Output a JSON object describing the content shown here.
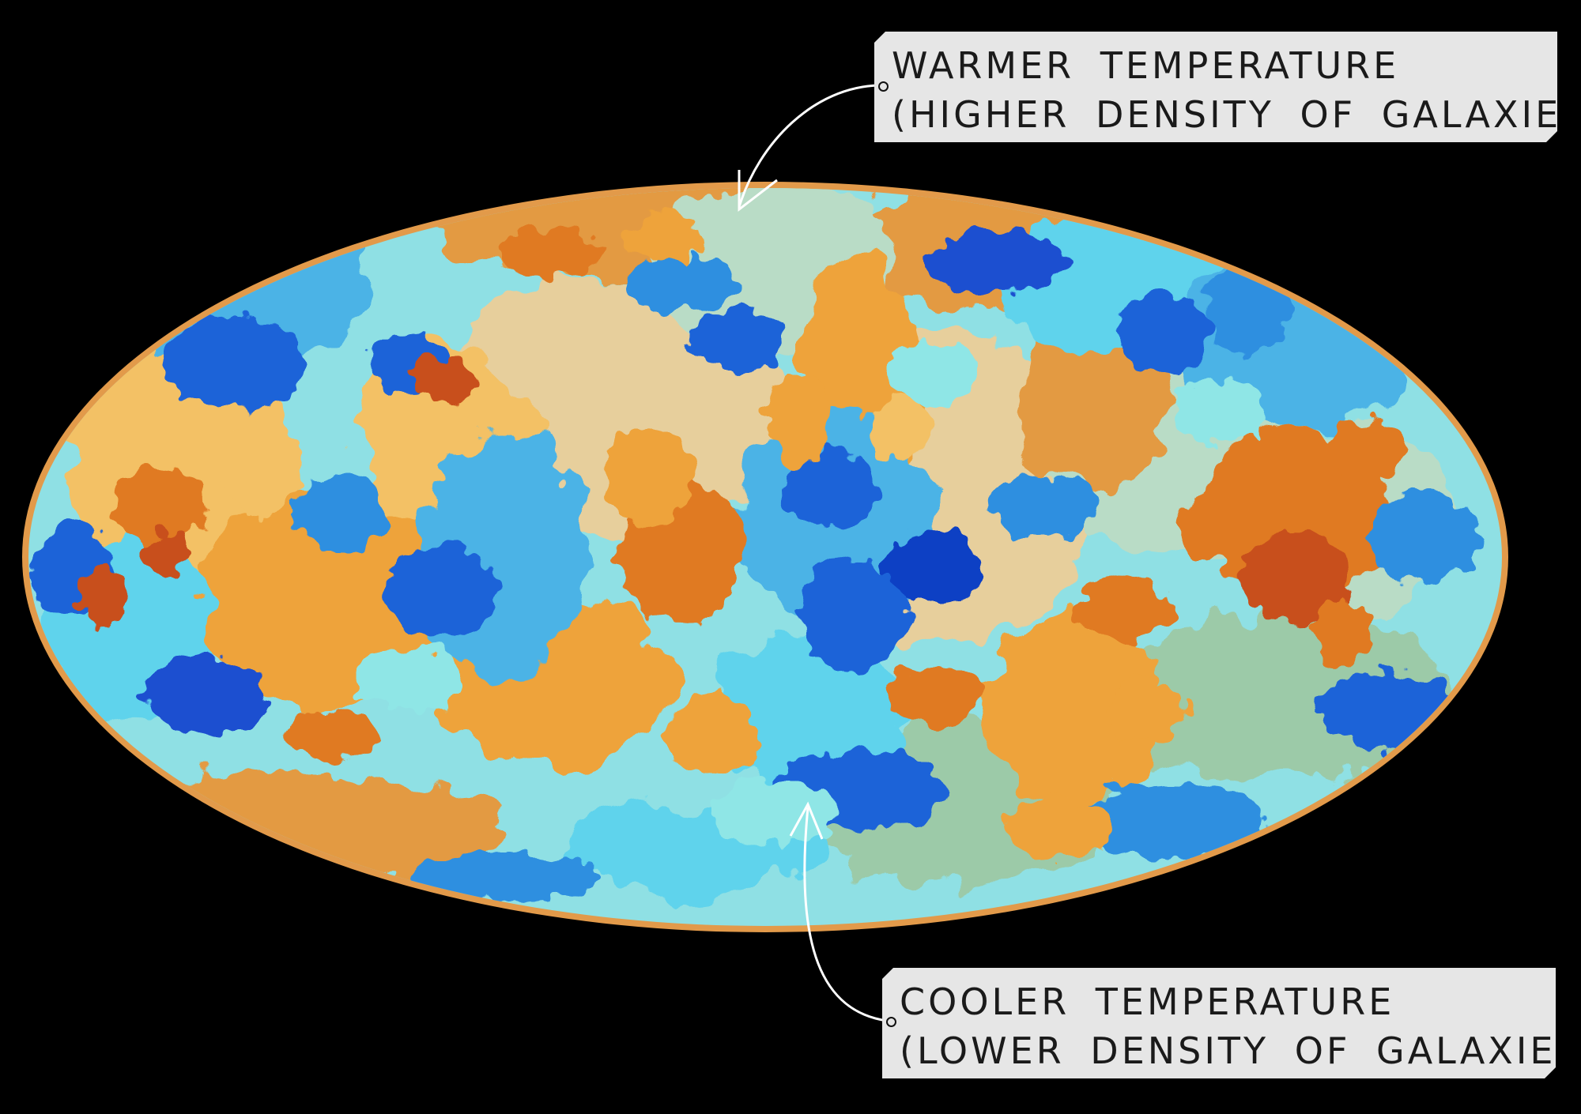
{
  "annotations": {
    "warmer": {
      "line1": "WARMER TEMPERATURE",
      "line2": "(HIGHER DENSITY OF GALAXIES)"
    },
    "cooler": {
      "line1": "COOLER TEMPERATURE",
      "line2": "(LOWER DENSITY OF GALAXIES)"
    }
  },
  "colors": {
    "background": "#000000",
    "rim": "#e29a4a",
    "callout_fill": "#e6e6e6",
    "palette_cool": [
      "#0b3fc4",
      "#1e63d8",
      "#2e8fe0",
      "#4cb3e6",
      "#5fd3ec",
      "#8fe6e6"
    ],
    "palette_warm": [
      "#c8501a",
      "#e07a24",
      "#eea33a",
      "#f3c165",
      "#e7cf9c"
    ],
    "palette_neutral": [
      "#b9dcc6",
      "#9ccaa8",
      "#d9cfa8"
    ]
  }
}
